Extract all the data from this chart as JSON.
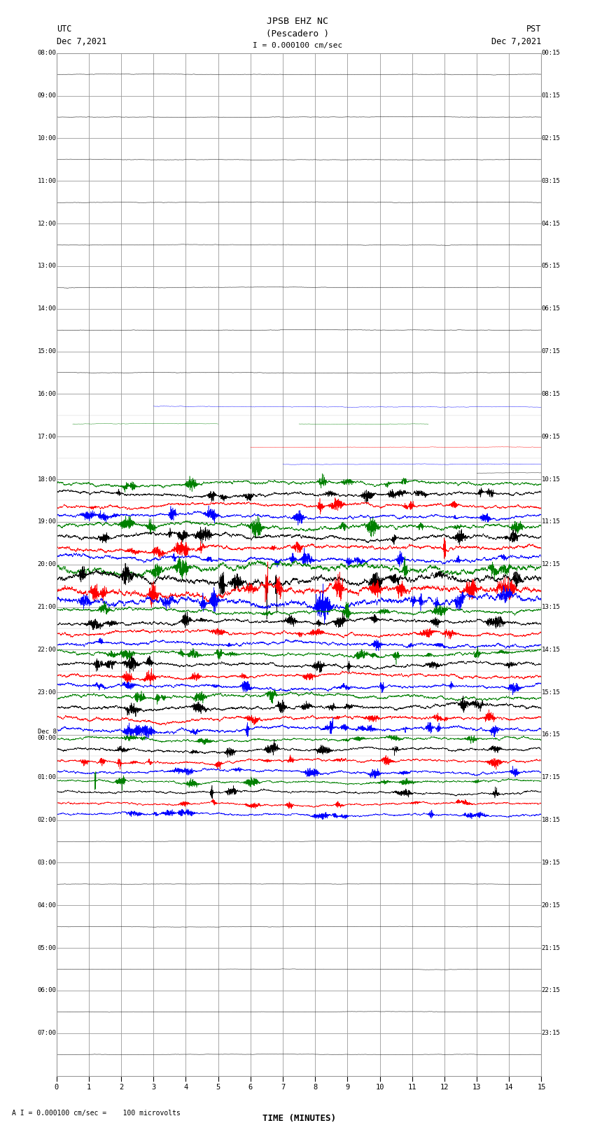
{
  "title_line1": "JPSB EHZ NC",
  "title_line2": "(Pescadero )",
  "title_line3": "I = 0.000100 cm/sec",
  "left_header_line1": "UTC",
  "left_header_line2": "Dec 7,2021",
  "right_header_line1": "PST",
  "right_header_line2": "Dec 7,2021",
  "xlabel": "TIME (MINUTES)",
  "footer": "A I = 0.000100 cm/sec =    100 microvolts",
  "utc_labels": [
    "08:00",
    "09:00",
    "10:00",
    "11:00",
    "12:00",
    "13:00",
    "14:00",
    "15:00",
    "16:00",
    "17:00",
    "18:00",
    "19:00",
    "20:00",
    "21:00",
    "22:00",
    "23:00",
    "Dec 8\n00:00",
    "01:00",
    "02:00",
    "03:00",
    "04:00",
    "05:00",
    "06:00",
    "07:00"
  ],
  "pst_labels": [
    "00:15",
    "01:15",
    "02:15",
    "03:15",
    "04:15",
    "05:15",
    "06:15",
    "07:15",
    "08:15",
    "09:15",
    "10:15",
    "11:15",
    "12:15",
    "13:15",
    "14:15",
    "15:15",
    "16:15",
    "17:15",
    "18:15",
    "19:15",
    "20:15",
    "21:15",
    "22:15",
    "23:15"
  ],
  "num_hours": 24,
  "minutes": 15,
  "bg_color": "#ffffff",
  "grid_color": "#999999",
  "subgrid_color": "#cccccc",
  "trace_color_order": [
    "#008000",
    "#000000",
    "#ff0000",
    "#0000ff"
  ],
  "traces_per_active_hour": 4,
  "seed": 12345
}
